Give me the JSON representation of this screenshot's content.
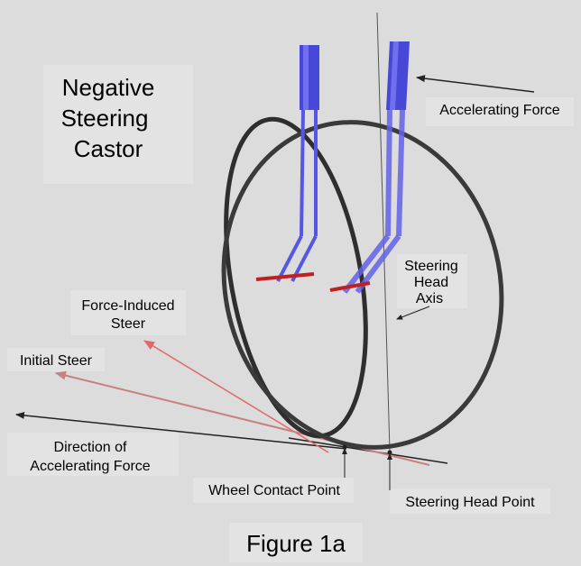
{
  "title_lines": [
    "Negative",
    "Steering",
    "Castor"
  ],
  "labels": {
    "accelerating_force": "Accelerating Force",
    "steering_head_axis": [
      "Steering",
      "Head",
      "Axis"
    ],
    "force_induced_steer": [
      "Force-Induced",
      "Steer"
    ],
    "initial_steer": "Initial Steer",
    "direction_of_force": [
      "Direction of",
      "Accelerating Force"
    ],
    "wheel_contact_point": "Wheel Contact Point",
    "steering_head_point": "Steering Head Point"
  },
  "caption": "Figure 1a",
  "colors": {
    "background": "#dcdcdc",
    "label_box": "#e3e3e3",
    "wheel": "#3a3a3a",
    "fork": "#5656e6",
    "fork_dark": "#3c3cc8",
    "axle": "#c02020",
    "steer_line": "#e06868",
    "initial_steer_line": "#c88080",
    "arrow": "#222222"
  }
}
